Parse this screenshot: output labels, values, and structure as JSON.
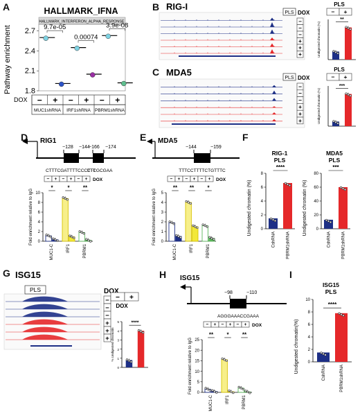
{
  "panels": {
    "A": {
      "label": "A",
      "title": "HALLMARK_IFNA",
      "strip": "HALLMARK_INTERFERON_ALPHA_RESPONSE",
      "ylabel": "Pathway enrichment",
      "yticks": [
        "1.8",
        "2.1",
        "2.4",
        "2.7"
      ],
      "pvalues": [
        "9.7e-05",
        "0.00074",
        "3.9e-08"
      ],
      "dox_label": "DOX",
      "dox_states": [
        "−",
        "+",
        "−",
        "+",
        "−",
        "+"
      ],
      "groups": [
        "MUC1shRNA",
        "IRF1shRNA",
        "PBRM1shRNA"
      ]
    },
    "B": {
      "label": "B",
      "title": "RIG-I",
      "pls": "PLS",
      "dox": "DOX",
      "signs": [
        "−",
        "−",
        "−",
        "+",
        "+",
        "+"
      ],
      "bar_title": "PLS",
      "bar_signs": [
        "−",
        "+"
      ],
      "sig": "**",
      "ylabel": "Undigested chromatin (%)"
    },
    "C": {
      "label": "C",
      "title": "MDA5",
      "pls": "PLS",
      "dox": "DOX",
      "signs": [
        "−",
        "−",
        "−",
        "+",
        "+",
        "+"
      ],
      "bar_title": "PLS",
      "bar_signs": [
        "−",
        "+"
      ],
      "sig": "***",
      "ylabel": "Undigested chromatin (%)"
    },
    "D": {
      "label": "D",
      "gene": "RIG1",
      "pos": [
        "−128",
        "−144",
        "−166",
        "−174"
      ],
      "seq1": "CTTTCGATTTTCCCTTT",
      "seq2": "CTCGCGAA",
      "dox": "DOX",
      "signs": [
        "−",
        "+",
        "−",
        "+",
        "−",
        "+"
      ],
      "sigs": [
        "*",
        "*",
        "**"
      ],
      "ylabel": "Fold enrichment relative to IgG",
      "yticks": [
        "0",
        "2",
        "4",
        "6",
        "8",
        "10"
      ],
      "groups": [
        "MUC1-C",
        "IRF1",
        "PBRM1"
      ]
    },
    "E": {
      "label": "E",
      "gene": "MDA5",
      "pos": [
        "−144",
        "−159"
      ],
      "seq": "TTTCCTTTTCTGTTTC",
      "dox": "DOX",
      "signs": [
        "−",
        "+",
        "−",
        "+",
        "−",
        "+"
      ],
      "sigs": [
        "**",
        "**",
        "*"
      ],
      "ylabel": "Fold enrichment relative to IgG",
      "yticks": [
        "0",
        "1",
        "2",
        "3",
        "4",
        "5"
      ],
      "groups": [
        "MUC1-C",
        "IRF1",
        "PBRM1"
      ]
    },
    "F": {
      "label": "F",
      "left": {
        "title1": "RIG-1",
        "title2": "PLS",
        "sig": "****",
        "yticks": [
          "0",
          "2",
          "4",
          "6",
          "8"
        ],
        "cats": [
          "CshRNA",
          "PBRM1shRNA"
        ]
      },
      "right": {
        "title1": "MDA5",
        "title2": "PLS",
        "sig": "***",
        "yticks": [
          "0",
          "20",
          "40",
          "60",
          "80"
        ],
        "cats": [
          "CshRNA",
          "PBRM1shRNA"
        ]
      },
      "ylabel": "Undigested chromatin (%)"
    },
    "G": {
      "label": "G",
      "title": "ISG15",
      "pls": "PLS",
      "dox": "DOX",
      "signs": [
        "−",
        "−",
        "−",
        "+",
        "+",
        "+"
      ],
      "bar_signs": [
        "−",
        "+"
      ],
      "dox2": "DOX",
      "sig": "****",
      "ylabel": "% Undigested chromatin",
      "yticks": [
        "0",
        "1",
        "2",
        "3",
        "4",
        "5"
      ]
    },
    "H": {
      "label": "H",
      "gene": "ISG15",
      "pos": [
        "−98",
        "−110"
      ],
      "seq": "AGGGAAACCGAAA",
      "dox": "DOX",
      "signs": [
        "−",
        "+",
        "−",
        "+",
        "−",
        "+"
      ],
      "sigs": [
        "**",
        "*",
        "**"
      ],
      "ylabel": "Fold enrichment relative to IgG",
      "yticks": [
        "0",
        "5",
        "10",
        "15",
        "20",
        "25"
      ],
      "groups": [
        "MUC1-C",
        "IRF1",
        "PBRM1"
      ]
    },
    "I": {
      "label": "I",
      "title1": "ISG15",
      "title2": "PLS",
      "sig": "****",
      "ylabel": "Undigested chromatin(%)",
      "yticks": [
        "0",
        "2",
        "4",
        "6",
        "8",
        "10"
      ],
      "cats": [
        "CshRNA",
        "PBRM1shRNA"
      ]
    }
  },
  "chart_data": [
    {
      "type": "scatter",
      "panel": "A",
      "title": "HALLMARK_IFNA",
      "ylabel": "Pathway enrichment",
      "ylim": [
        1.8,
        2.8
      ],
      "categories": [
        "MUC1shRNA −",
        "MUC1shRNA +",
        "IRF1shRNA −",
        "IRF1shRNA +",
        "PBRM1shRNA −",
        "PBRM1shRNA +"
      ],
      "values": [
        2.6,
        1.91,
        2.45,
        2.05,
        2.63,
        1.92
      ]
    },
    {
      "type": "bar",
      "panel": "B",
      "ylabel": "Undigested chromatin (%)",
      "categories": [
        "−",
        "+"
      ],
      "values": [
        0.5,
        2.0
      ]
    },
    {
      "type": "bar",
      "panel": "C",
      "ylabel": "Undigested chromatin (%)",
      "categories": [
        "−",
        "+"
      ],
      "values": [
        0.4,
        2.8
      ]
    },
    {
      "type": "bar",
      "panel": "D",
      "ylabel": "Fold enrichment relative to IgG",
      "ylim": [
        0,
        10
      ],
      "categories": [
        "MUC1-C",
        "IRF1",
        "PBRM1"
      ],
      "series": [
        {
          "name": "−",
          "values": [
            1.1,
            8.8,
            1.8
          ]
        },
        {
          "name": "+",
          "values": [
            0.3,
            0.9,
            0.2
          ]
        }
      ]
    },
    {
      "type": "bar",
      "panel": "E",
      "ylabel": "Fold enrichment relative to IgG",
      "ylim": [
        0,
        5
      ],
      "categories": [
        "MUC1-C",
        "IRF1",
        "PBRM1"
      ],
      "series": [
        {
          "name": "−",
          "values": [
            1.9,
            4.0,
            1.6
          ]
        },
        {
          "name": "+",
          "values": [
            0.5,
            1.5,
            0.3
          ]
        }
      ]
    },
    {
      "type": "bar",
      "panel": "F-RIG-1",
      "ylabel": "Undigested chromatin (%)",
      "ylim": [
        0,
        8
      ],
      "categories": [
        "CshRNA",
        "PBRM1shRNA"
      ],
      "values": [
        1.5,
        6.6
      ]
    },
    {
      "type": "bar",
      "panel": "F-MDA5",
      "ylabel": "Undigested chromatin (%)",
      "ylim": [
        0,
        80
      ],
      "categories": [
        "CshRNA",
        "PBRM1shRNA"
      ],
      "values": [
        13,
        60
      ]
    },
    {
      "type": "bar",
      "panel": "G",
      "ylabel": "% Undigested chromatin",
      "ylim": [
        0,
        5
      ],
      "categories": [
        "−",
        "+"
      ],
      "values": [
        0.8,
        4.0
      ]
    },
    {
      "type": "bar",
      "panel": "H",
      "ylabel": "Fold enrichment relative to IgG",
      "ylim": [
        0,
        25
      ],
      "categories": [
        "MUC1-C",
        "IRF1",
        "PBRM1"
      ],
      "series": [
        {
          "name": "−",
          "values": [
            1.5,
            15.5,
            2.0
          ]
        },
        {
          "name": "+",
          "values": [
            0.4,
            0.3,
            0.2
          ]
        }
      ]
    },
    {
      "type": "bar",
      "panel": "I",
      "ylabel": "Undigested chromatin(%)",
      "ylim": [
        0,
        10
      ],
      "categories": [
        "CshRNA",
        "PBRM1shRNA"
      ],
      "values": [
        1.5,
        7.8
      ]
    }
  ],
  "colors": {
    "blue": "#2e3e9c",
    "red": "#e5282a",
    "yellow": "#f2e83a",
    "green": "#5ab55a",
    "navy": "#1d2f86"
  }
}
